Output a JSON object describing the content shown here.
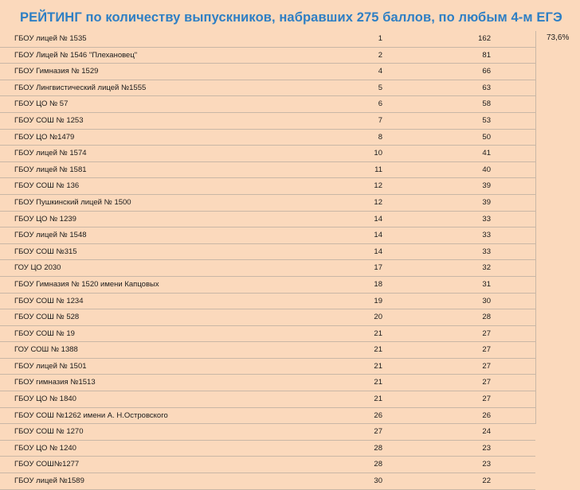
{
  "title": "РЕЙТИНГ по количеству выпускников, набравших 275 баллов, по любым 4-м ЕГЭ",
  "note": "73,6%",
  "rows": [
    {
      "name": "ГБОУ лицей № 1535",
      "rank": "1",
      "count": "162"
    },
    {
      "name": "ГБОУ Лицей № 1546 \"Плехановец\"",
      "rank": "2",
      "count": "81"
    },
    {
      "name": "ГБОУ Гимназия № 1529",
      "rank": "4",
      "count": "66"
    },
    {
      "name": "ГБОУ Лингвистический лицей №1555",
      "rank": "5",
      "count": "63"
    },
    {
      "name": "ГБОУ ЦО № 57",
      "rank": "6",
      "count": "58"
    },
    {
      "name": "ГБОУ СОШ № 1253",
      "rank": "7",
      "count": "53"
    },
    {
      "name": "ГБОУ ЦО №1479",
      "rank": "8",
      "count": "50"
    },
    {
      "name": "ГБОУ лицей № 1574",
      "rank": "10",
      "count": "41"
    },
    {
      "name": "ГБОУ лицей № 1581",
      "rank": "11",
      "count": "40"
    },
    {
      "name": "ГБОУ СОШ № 136",
      "rank": "12",
      "count": "39"
    },
    {
      "name": "ГБОУ Пушкинский лицей № 1500",
      "rank": "12",
      "count": "39"
    },
    {
      "name": "ГБОУ ЦО № 1239",
      "rank": "14",
      "count": "33"
    },
    {
      "name": "ГБОУ лицей № 1548",
      "rank": "14",
      "count": "33"
    },
    {
      "name": "ГБОУ СОШ №315",
      "rank": "14",
      "count": "33"
    },
    {
      "name": "ГОУ ЦО 2030",
      "rank": "17",
      "count": "32"
    },
    {
      "name": "ГБОУ Гимназия № 1520 имени Капцовых",
      "rank": "18",
      "count": "31"
    },
    {
      "name": "ГБОУ СОШ № 1234",
      "rank": "19",
      "count": "30"
    },
    {
      "name": "ГБОУ СОШ № 528",
      "rank": "20",
      "count": "28"
    },
    {
      "name": "ГБОУ СОШ № 19",
      "rank": "21",
      "count": "27"
    },
    {
      "name": "ГОУ СОШ № 1388",
      "rank": "21",
      "count": "27"
    },
    {
      "name": "ГБОУ лицей № 1501",
      "rank": "21",
      "count": "27"
    },
    {
      "name": "ГБОУ гимназия  №1513",
      "rank": "21",
      "count": "27"
    },
    {
      "name": "ГБОУ ЦО № 1840",
      "rank": "21",
      "count": "27"
    },
    {
      "name": "ГБОУ СОШ №1262 имени А. Н.Островского",
      "rank": "26",
      "count": "26"
    },
    {
      "name": "ГБОУ СОШ № 1270",
      "rank": "27",
      "count": "24"
    },
    {
      "name": "ГБОУ ЦО № 1240",
      "rank": "28",
      "count": "23"
    },
    {
      "name": "ГБОУ СОШ№1277",
      "rank": "28",
      "count": "23"
    },
    {
      "name": "ГБОУ лицей №1589",
      "rank": "30",
      "count": "22"
    }
  ]
}
